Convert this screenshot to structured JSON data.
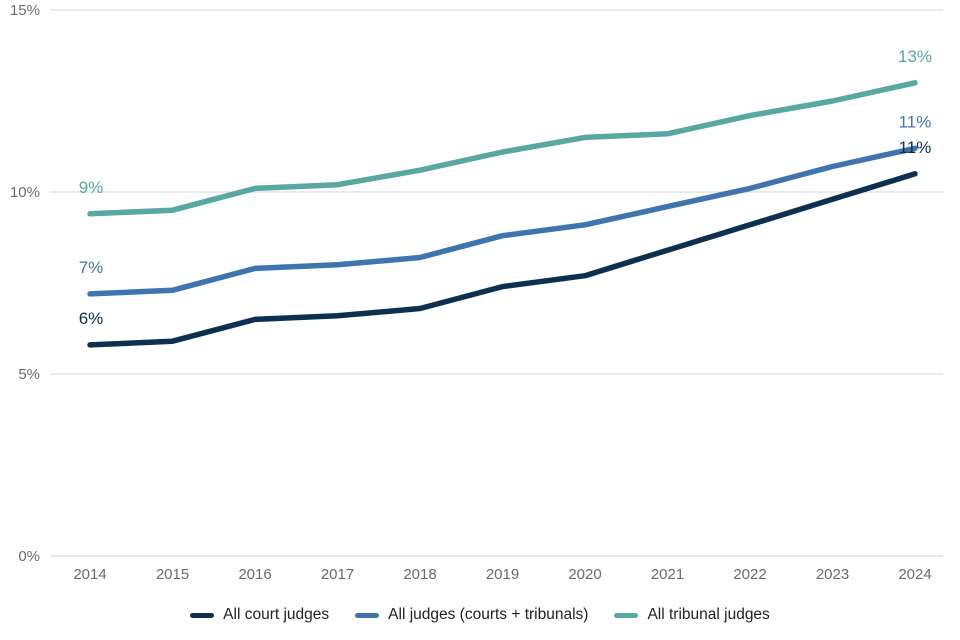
{
  "chart_data": {
    "type": "line",
    "categories": [
      "2014",
      "2015",
      "2016",
      "2017",
      "2018",
      "2019",
      "2020",
      "2021",
      "2022",
      "2023",
      "2024"
    ],
    "series": [
      {
        "name": "All court judges",
        "color": "#0e3050",
        "values": [
          5.8,
          5.9,
          6.5,
          6.6,
          6.8,
          7.4,
          7.7,
          8.4,
          9.1,
          9.8,
          10.5
        ],
        "start_label": "6%",
        "end_label": "11%"
      },
      {
        "name": "All judges (courts + tribunals)",
        "color": "#3f75af",
        "values": [
          7.2,
          7.3,
          7.9,
          8.0,
          8.2,
          8.8,
          9.1,
          9.6,
          10.1,
          10.7,
          11.2
        ],
        "start_label": "7%",
        "end_label": "11%"
      },
      {
        "name": "All tribunal judges",
        "color": "#57a8a1",
        "values": [
          9.4,
          9.5,
          10.1,
          10.2,
          10.6,
          11.1,
          11.5,
          11.6,
          12.1,
          12.5,
          13.0
        ],
        "start_label": "9%",
        "end_label": "13%"
      }
    ],
    "y_axis": {
      "ticks": [
        0,
        5,
        10,
        15
      ],
      "tick_labels": [
        "0%",
        "5%",
        "10%",
        "15%"
      ],
      "range": [
        0,
        15
      ]
    },
    "x_axis": {
      "labels": [
        "2014",
        "2015",
        "2016",
        "2017",
        "2018",
        "2019",
        "2020",
        "2021",
        "2022",
        "2023",
        "2024"
      ]
    },
    "legend_position": "bottom",
    "grid": "horizontal",
    "colors": {
      "grid_line": "#dcdcdc",
      "tick_text": "#6b6b6b",
      "legend_text": "#222222",
      "background": "#ffffff"
    }
  }
}
